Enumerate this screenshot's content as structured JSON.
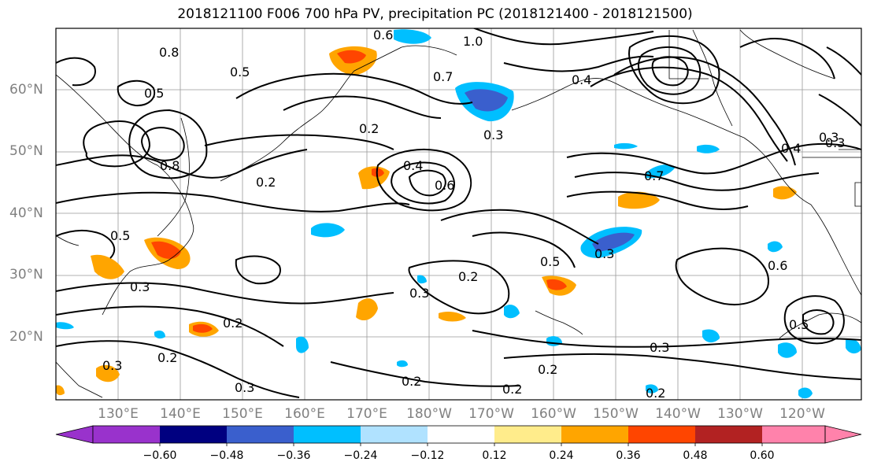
{
  "title": "2018121100 F006 700 hPa PV, precipitation PC (2018121400 - 2018121500)",
  "lat_labels": [
    "60°N",
    "50°N",
    "40°N",
    "30°N",
    "20°N"
  ],
  "lon_labels": [
    "130°E",
    "140°E",
    "150°E",
    "160°E",
    "170°E",
    "180°W",
    "170°W",
    "160°W",
    "150°W",
    "140°W",
    "130°W",
    "120°W"
  ],
  "colorbar": {
    "ticks": [
      "−0.60",
      "−0.48",
      "−0.36",
      "−0.24",
      "−0.12",
      "0.12",
      "0.24",
      "0.36",
      "0.48",
      "0.60"
    ],
    "colors": [
      "#9932cc",
      "#000080",
      "#3a5fcd",
      "#00bfff",
      "#b0e2ff",
      "#ffffff",
      "#ffec8b",
      "#ffa500",
      "#ff4500",
      "#b22222",
      "#ff82ab"
    ]
  },
  "contour_labels": [
    "0.8",
    "0.5",
    "1.0",
    "0.6",
    "0.7",
    "0.4",
    "0.2",
    "0.3",
    "0.2",
    "0.5",
    "0.8",
    "0.6",
    "0.4",
    "0.7",
    "0.3",
    "0.2",
    "0.5",
    "0.3",
    "0.2",
    "0.3",
    "0.2",
    "0.3",
    "0.5",
    "0.6",
    "0.4",
    "0.3",
    "0.2",
    "0.5",
    "0.3",
    "0.2",
    "0.2",
    "0.3",
    "0.2",
    "0.3"
  ]
}
